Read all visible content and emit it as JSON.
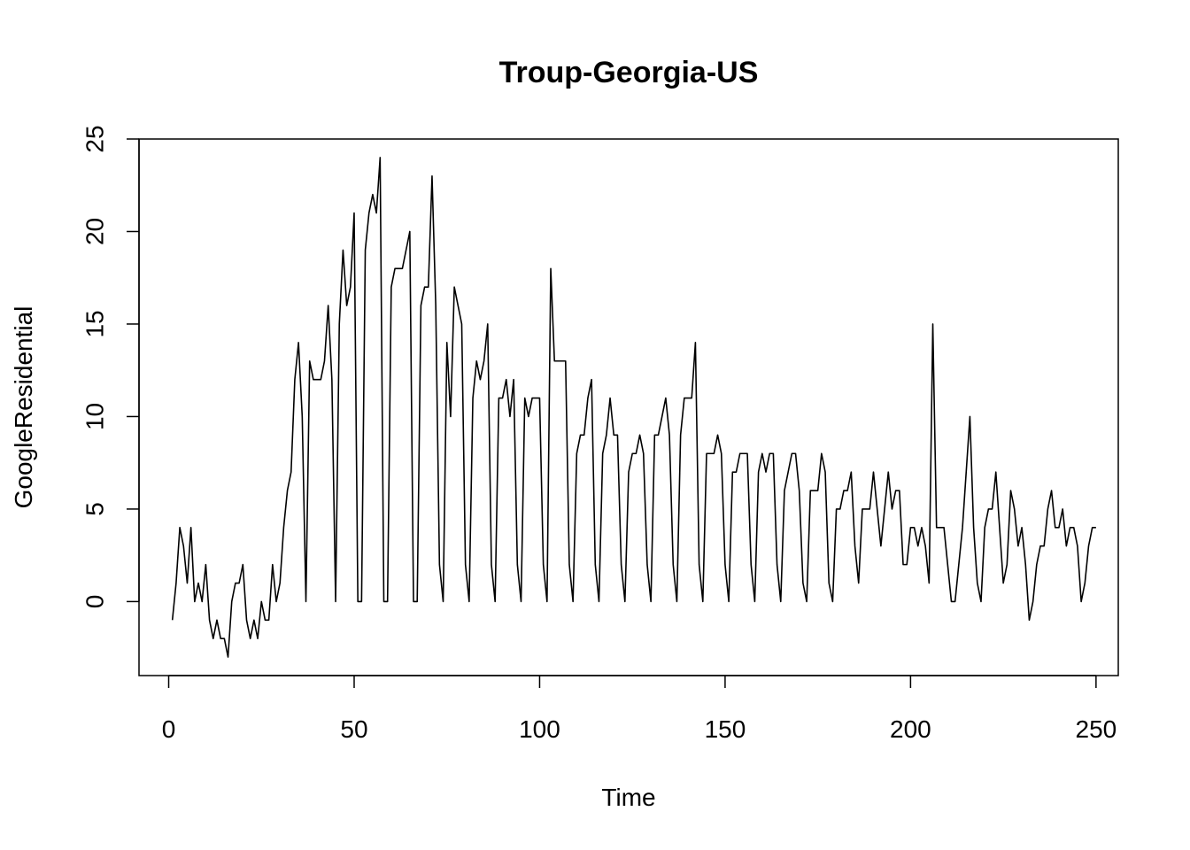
{
  "chart_data": {
    "type": "line",
    "title": "Troup-Georgia-US",
    "xlabel": "Time",
    "ylabel": "GoogleResidential",
    "xlim": [
      -8,
      256
    ],
    "ylim": [
      -4,
      25
    ],
    "xticks": [
      0,
      50,
      100,
      150,
      200,
      250
    ],
    "yticks": [
      0,
      5,
      10,
      15,
      20,
      25
    ],
    "grid": false,
    "series": [
      {
        "x_start": 1,
        "values": [
          -1,
          1,
          4,
          3,
          1,
          4,
          0,
          1,
          0,
          2,
          -1,
          -2,
          -1,
          -2,
          -2,
          -3,
          0,
          1,
          1,
          2,
          -1,
          -2,
          -1,
          -2,
          0,
          -1,
          -1,
          2,
          0,
          1,
          4,
          6,
          7,
          12,
          14,
          10,
          0,
          13,
          12,
          12,
          12,
          13,
          16,
          12,
          0,
          15,
          19,
          16,
          17,
          21,
          0,
          0,
          19,
          21,
          22,
          21,
          24,
          0,
          0,
          17,
          18,
          18,
          18,
          19,
          20,
          0,
          0,
          16,
          17,
          17,
          23,
          16,
          2,
          0,
          14,
          10,
          17,
          16,
          15,
          2,
          0,
          11,
          13,
          12,
          13,
          15,
          2,
          0,
          11,
          11,
          12,
          10,
          12,
          2,
          0,
          11,
          10,
          11,
          11,
          11,
          2,
          0,
          18,
          13,
          13,
          13,
          13,
          2,
          0,
          8,
          9,
          9,
          11,
          12,
          2,
          0,
          8,
          9,
          11,
          9,
          9,
          2,
          0,
          7,
          8,
          8,
          9,
          8,
          2,
          0,
          9,
          9,
          10,
          11,
          9,
          2,
          0,
          9,
          11,
          11,
          11,
          14,
          2,
          0,
          8,
          8,
          8,
          9,
          8,
          2,
          0,
          7,
          7,
          8,
          8,
          8,
          2,
          0,
          7,
          8,
          7,
          8,
          8,
          2,
          0,
          6,
          7,
          8,
          8,
          6,
          1,
          0,
          6,
          6,
          6,
          8,
          7,
          1,
          0,
          5,
          5,
          6,
          6,
          7,
          3,
          1,
          5,
          5,
          5,
          7,
          5,
          3,
          5,
          7,
          5,
          6,
          6,
          2,
          2,
          4,
          4,
          3,
          4,
          3,
          1,
          15,
          4,
          4,
          4,
          2,
          0,
          0,
          2,
          4,
          7,
          10,
          4,
          1,
          0,
          4,
          5,
          5,
          7,
          4,
          1,
          2,
          6,
          5,
          3,
          4,
          2,
          -1,
          0,
          2,
          3,
          3,
          5,
          6,
          4,
          4,
          5,
          3,
          4,
          4,
          3,
          0,
          1,
          3,
          4,
          4
        ]
      }
    ]
  }
}
